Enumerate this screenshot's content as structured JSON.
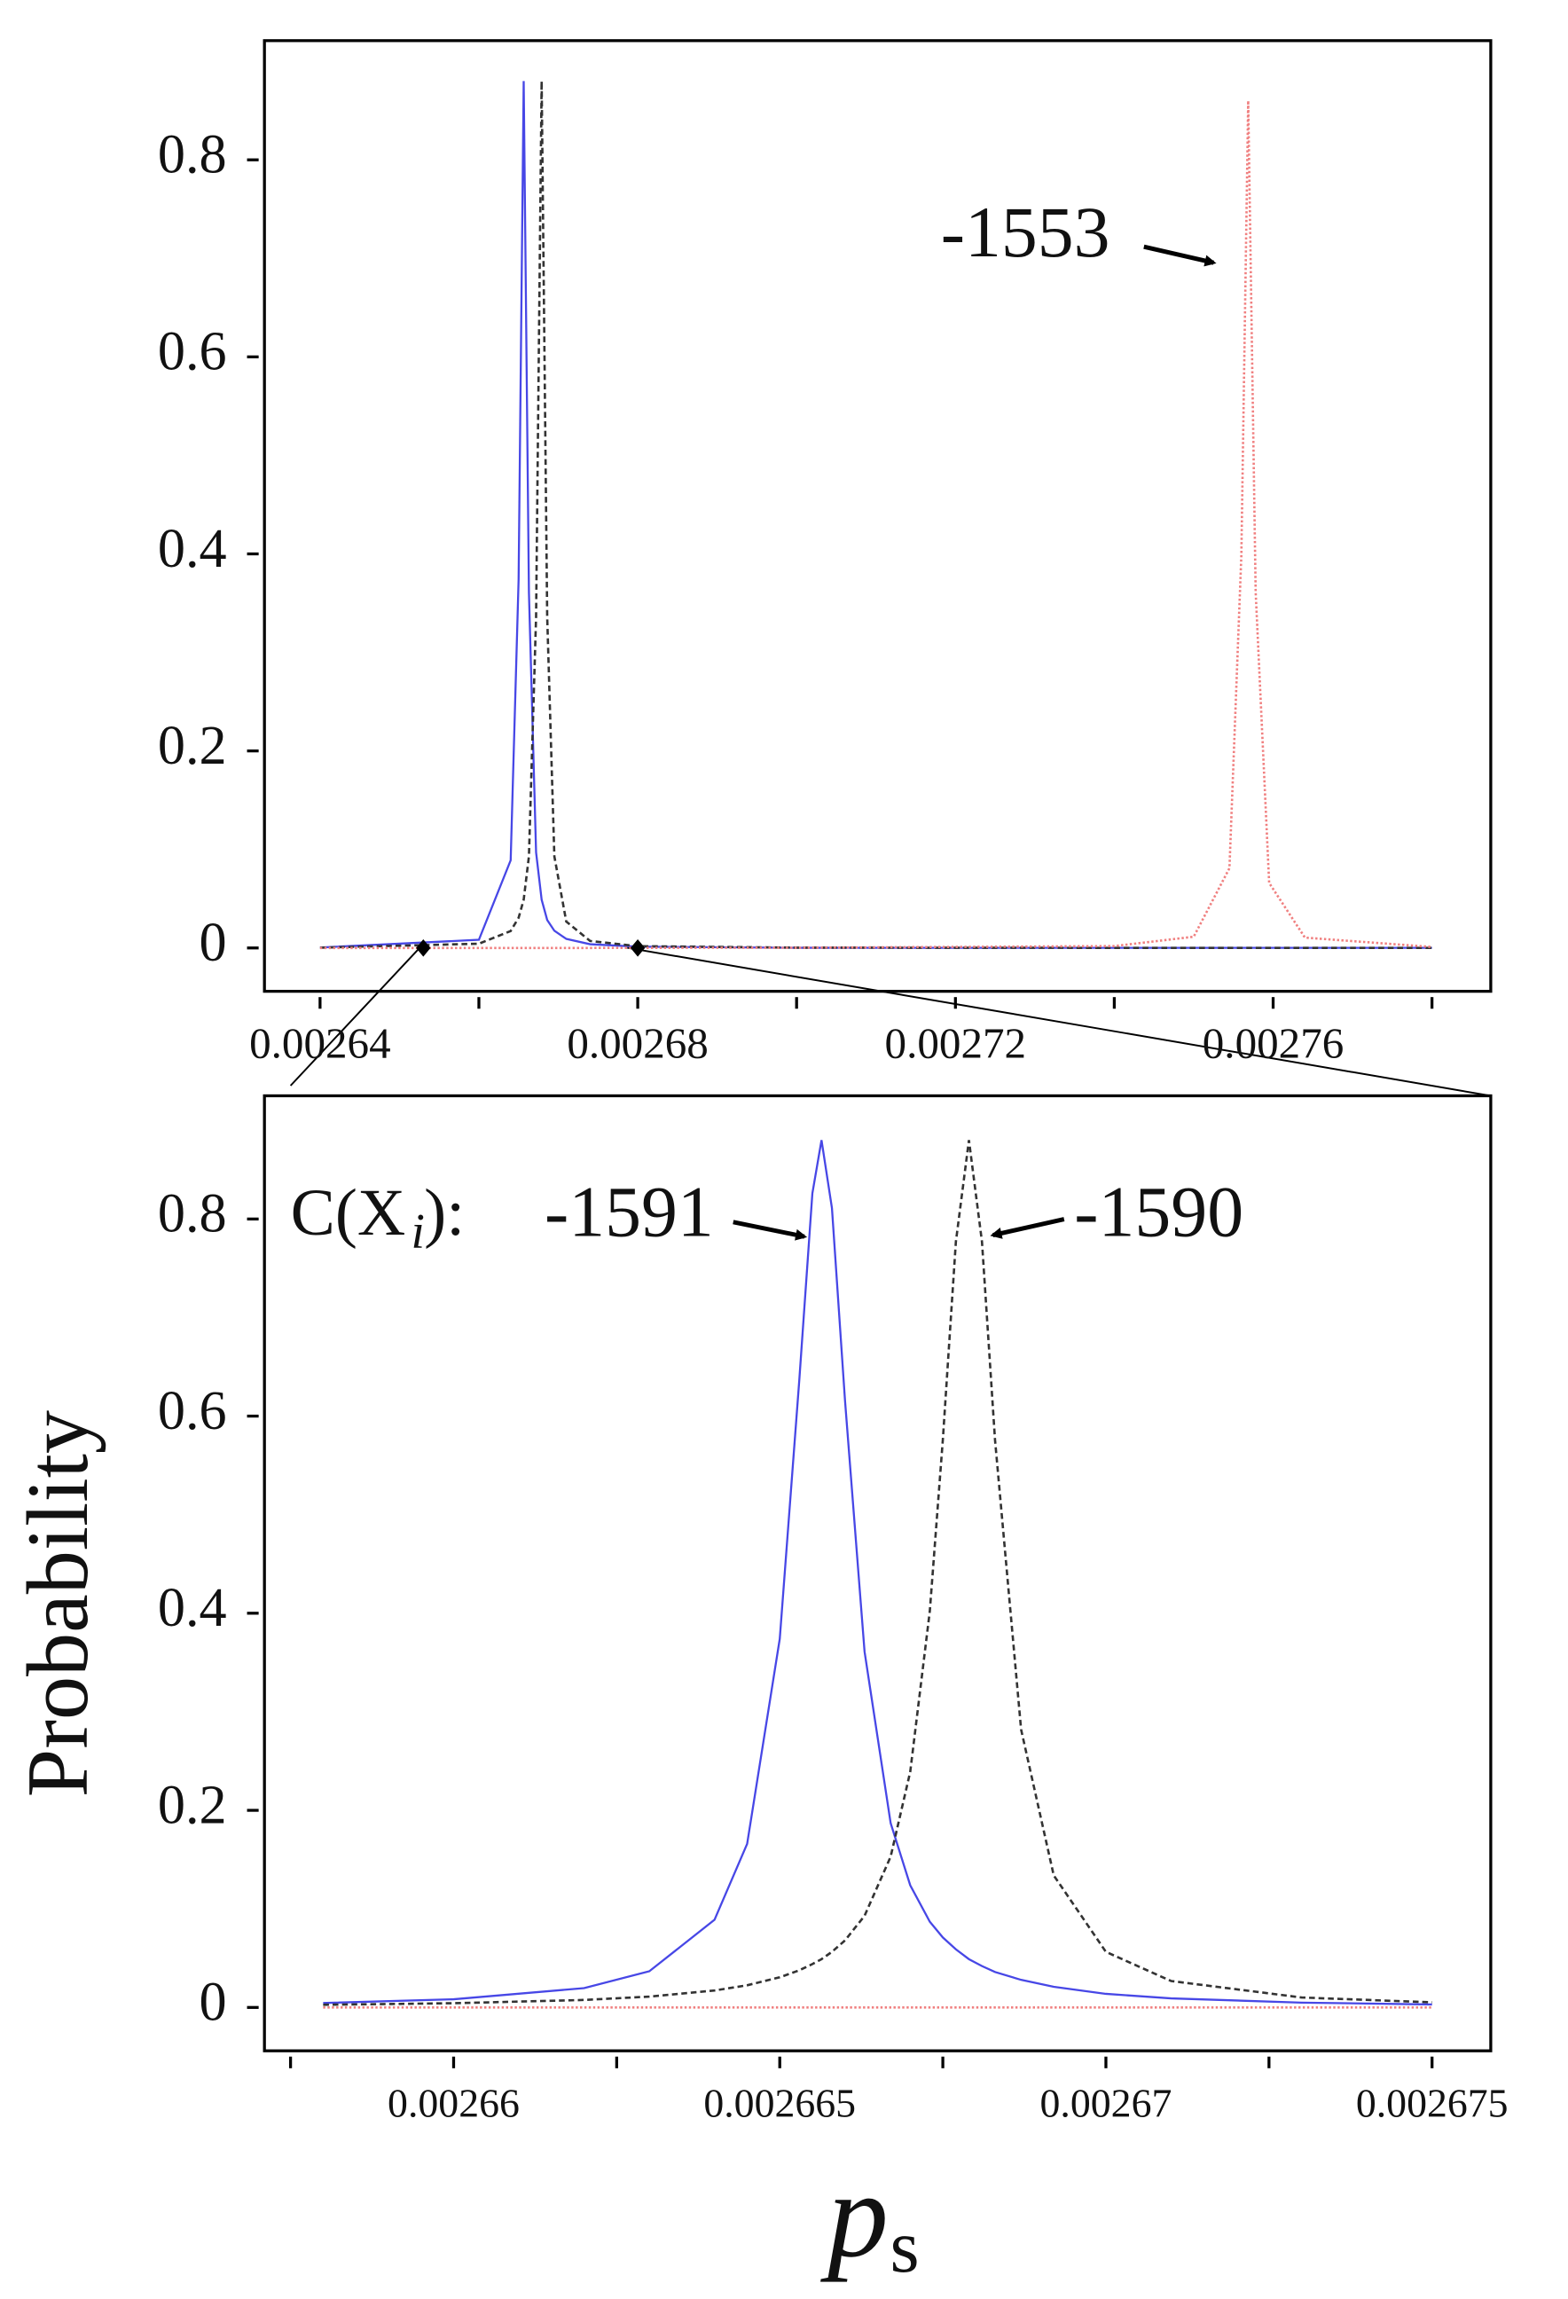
{
  "chart_data": [
    {
      "type": "line",
      "xlim": [
        0.002633,
        0.0027874
      ],
      "ylim": [
        -0.044,
        0.921
      ],
      "xticks": [
        0.00264,
        0.00268,
        0.00272,
        0.00276
      ],
      "xminorticks": [
        0.00266,
        0.0027,
        0.00274,
        0.00278
      ],
      "yticks": [
        0,
        0.2,
        0.4,
        0.6,
        0.8
      ],
      "x": [
        0.00264,
        0.00266,
        0.002664,
        0.002665,
        0.00266564,
        0.0026663,
        0.0026672,
        0.0026679,
        0.0026686,
        0.0026695,
        0.002671,
        0.002674,
        0.00268,
        0.0027,
        0.00274,
        0.00275,
        0.0027545,
        0.002756,
        0.00275686,
        0.0027578,
        0.0027595,
        0.002764,
        0.00278
      ],
      "series": [
        {
          "color": "#4747e6",
          "values": [
            0.0004,
            0.0083,
            0.089,
            0.374,
            0.88,
            0.361,
            0.097,
            0.049,
            0.0284,
            0.0175,
            0.0092,
            0.0038,
            0.0013,
            0.0002,
            0.0001,
            0.0001,
            0.0001,
            0.0001,
            0.0001,
            0.0001,
            0.0001,
            0.0001,
            0.0001
          ]
        },
        {
          "color": "#333333",
          "values": [
            0.0003,
            0.0043,
            0.0172,
            0.0306,
            0.049,
            0.093,
            0.336,
            0.88,
            0.336,
            0.093,
            0.0268,
            0.0071,
            0.0018,
            0.0003,
            0.0001,
            0.0001,
            0.0001,
            0.0001,
            0.0001,
            0.0001,
            0.0001,
            0.0001,
            0.0001
          ]
        },
        {
          "color": "#f08080",
          "values": [
            0,
            0,
            0,
            0,
            0,
            0,
            0,
            0,
            0,
            0,
            0,
            0,
            0.0001,
            0.0002,
            0.0019,
            0.0114,
            0.081,
            0.399,
            0.86,
            0.361,
            0.066,
            0.0105,
            0.001
          ]
        }
      ],
      "markers": [
        0.002653,
        0.00268
      ],
      "annotations": [
        "-1553"
      ]
    },
    {
      "type": "line",
      "xlim": [
        0.0026571,
        0.0026759
      ],
      "ylim": [
        -0.044,
        0.925
      ],
      "xticks": [
        0.00266,
        0.002665,
        0.00267,
        0.002675
      ],
      "xminorticks": [
        0.0026575,
        0.0026625,
        0.0026675,
        0.0026725
      ],
      "yticks": [
        0,
        0.2,
        0.4,
        0.6,
        0.8
      ],
      "x_label": "p",
      "x_label_subscript": "s",
      "y_label": "Probability",
      "x": [
        0.002658,
        0.00266,
        0.002662,
        0.002663,
        0.002664,
        0.0026645,
        0.002665,
        0.0026653,
        0.0026655,
        0.00266564,
        0.0026658,
        0.002666,
        0.0026663,
        0.0026667,
        0.002667,
        0.0026673,
        0.0026675,
        0.0026677,
        0.0026679,
        0.0026681,
        0.0026683,
        0.0026687,
        0.0026692,
        0.00267,
        0.002671,
        0.002673,
        0.002675
      ],
      "series": [
        {
          "color": "#4747e6",
          "values": [
            0.0045,
            0.0083,
            0.0196,
            0.0367,
            0.089,
            0.166,
            0.374,
            0.637,
            0.826,
            0.88,
            0.811,
            0.616,
            0.361,
            0.187,
            0.124,
            0.087,
            0.071,
            0.059,
            0.049,
            0.042,
            0.036,
            0.028,
            0.021,
            0.0138,
            0.0092,
            0.0049,
            0.003
          ]
        },
        {
          "color": "#333333",
          "values": [
            0.0027,
            0.0043,
            0.0076,
            0.011,
            0.0172,
            0.0225,
            0.0306,
            0.0377,
            0.044,
            0.049,
            0.0564,
            0.068,
            0.093,
            0.153,
            0.239,
            0.402,
            0.576,
            0.777,
            0.88,
            0.777,
            0.576,
            0.282,
            0.134,
            0.0564,
            0.0268,
            0.0101,
            0.0052
          ]
        },
        {
          "color": "#f08080",
          "values": [
            0,
            0,
            0,
            0,
            0,
            0,
            0,
            0,
            0,
            0,
            0,
            0,
            0,
            0,
            0,
            0,
            0,
            0,
            0,
            0,
            0,
            0,
            0,
            0,
            0,
            0,
            0
          ]
        }
      ],
      "annotations": [
        "C(X",
        "i",
        "):",
        "-1591",
        "-1590"
      ]
    }
  ]
}
